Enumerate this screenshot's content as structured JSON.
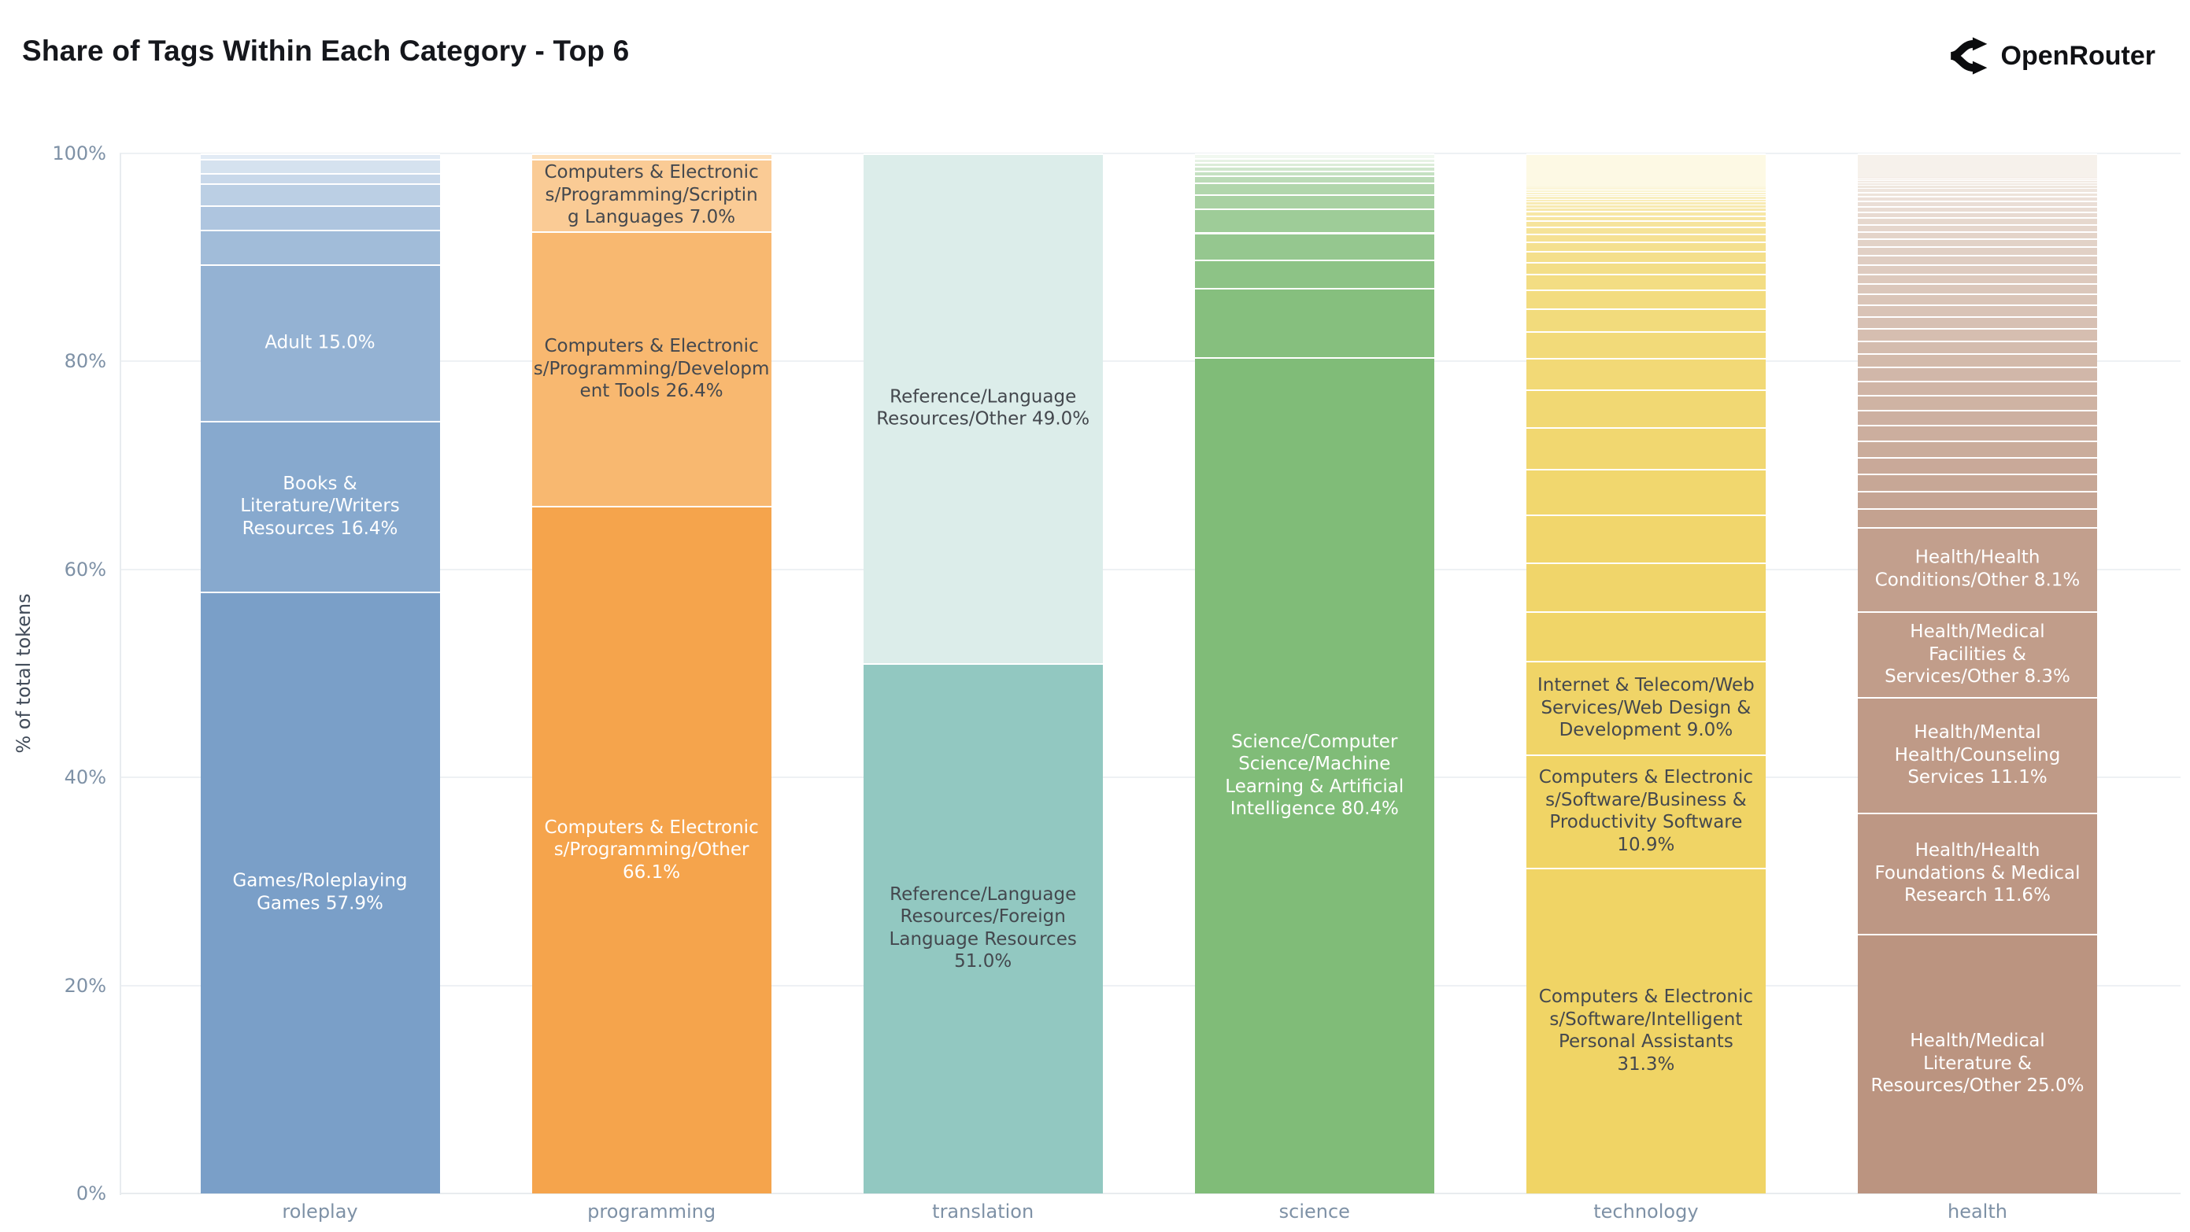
{
  "title": "Share of Tags Within Each Category - Top 6",
  "brand": {
    "name": "OpenRouter"
  },
  "y_axis": {
    "title": "% of total tokens",
    "ticks": [
      {
        "label": "0%",
        "value": 0
      },
      {
        "label": "20%",
        "value": 20
      },
      {
        "label": "40%",
        "value": 40
      },
      {
        "label": "60%",
        "value": 60
      },
      {
        "label": "80%",
        "value": 80
      },
      {
        "label": "100%",
        "value": 100
      }
    ]
  },
  "x_axis": {
    "categories": [
      "roleplay",
      "programming",
      "translation",
      "science",
      "technology",
      "health"
    ]
  },
  "colors": {
    "background": "#ffffff",
    "title_text": "#15171c",
    "tick_text": "#7e91a6",
    "axis_title_text": "#414b59",
    "grid": "#eef1f4",
    "axis_line": "#e8ecef",
    "segment_gap": "#ffffff",
    "label_light": "#ffffff",
    "label_dark": "#44484e",
    "logo_icon": "#0b0c0e"
  },
  "chart_data": {
    "type": "bar",
    "stacked": true,
    "normalized": "percent",
    "title": "Share of Tags Within Each Category - Top 6",
    "ylabel": "% of total tokens",
    "ylim": [
      0,
      100
    ],
    "grid": true,
    "legend": false,
    "categories": [
      "roleplay",
      "programming",
      "translation",
      "science",
      "technology",
      "health"
    ],
    "bars": [
      {
        "category": "roleplay",
        "color_base": "#7A9FC8",
        "color_light": "#E2EBF5",
        "color_curve": 1,
        "segments": [
          {
            "label": "Games/Roleplaying Games",
            "value": 57.9,
            "text": "light"
          },
          {
            "label": "Books & Literature/Writers Resources",
            "value": 16.4,
            "text": "light"
          },
          {
            "label": "Adult",
            "value": 15.0,
            "text": "light"
          },
          {
            "value": 3.4
          },
          {
            "value": 2.3
          },
          {
            "value": 2.1
          },
          {
            "value": 1.0
          },
          {
            "value": 1.4
          },
          {
            "value": 0.5
          }
        ]
      },
      {
        "category": "programming",
        "color_base": "#F5A44C",
        "color_light": "#FDDFB9",
        "color_curve": 1,
        "segments": [
          {
            "label": "Computers & Electronics/Programming/Other",
            "value": 66.1,
            "text": "light"
          },
          {
            "label": "Computers & Electronics/Programming/Development Tools",
            "value": 26.4,
            "text": "dark"
          },
          {
            "label": "Computers & Electronics/Programming/Scripting Languages",
            "value": 7.0,
            "text": "dark"
          },
          {
            "value": 0.5
          }
        ]
      },
      {
        "category": "translation",
        "color_base": "#92C8C1",
        "color_light": "#DCEDEA",
        "color_curve": 1,
        "segments": [
          {
            "label": "Reference/Language Resources/Foreign Language Resources",
            "value": 51.0,
            "text": "dark"
          },
          {
            "label": "Reference/Language Resources/Other",
            "value": 49.0,
            "text": "dark"
          }
        ]
      },
      {
        "category": "science",
        "color_base": "#80BC78",
        "color_light": "#F1F8F0",
        "color_curve": 1.2,
        "segments": [
          {
            "label": "Science/Computer Science/Machine Learning & Artificial Intelligence",
            "value": 80.4,
            "text": "light"
          },
          {
            "value": 6.7
          },
          {
            "value": 2.7
          },
          {
            "value": 2.6
          },
          {
            "value": 2.3
          },
          {
            "value": 1.4
          },
          {
            "value": 1.1
          },
          {
            "value": 0.7
          },
          {
            "value": 0.45
          },
          {
            "value": 0.45
          },
          {
            "value": 0.4
          },
          {
            "value": 0.38
          },
          {
            "value": 0.42
          }
        ]
      },
      {
        "category": "technology",
        "color_base": "#F0D465",
        "color_light": "#FDF9E4",
        "color_curve": 1.6,
        "segments": [
          {
            "label": "Computers & Electronics/Software/Intelligent Personal Assistants",
            "value": 31.3,
            "text": "dark"
          },
          {
            "label": "Computers & Electronics/Software/Business & Productivity Software",
            "value": 10.9,
            "text": "dark"
          },
          {
            "label": "Internet & Telecom/Web Services/Web Design & Development",
            "value": 9.0,
            "text": "dark"
          },
          {
            "value": 4.8
          },
          {
            "value": 4.7
          },
          {
            "value": 4.6
          },
          {
            "value": 4.4
          },
          {
            "value": 4.0
          },
          {
            "value": 3.6
          },
          {
            "value": 3.0
          },
          {
            "value": 2.6
          },
          {
            "value": 2.2
          },
          {
            "value": 1.8
          },
          {
            "value": 1.5
          },
          {
            "value": 1.2
          },
          {
            "value": 1.0
          },
          {
            "value": 0.9
          },
          {
            "value": 0.8
          },
          {
            "value": 0.7
          },
          {
            "value": 0.6
          },
          {
            "value": 0.45
          },
          {
            "value": 0.4
          },
          {
            "value": 0.35
          },
          {
            "value": 0.3
          },
          {
            "value": 0.3
          },
          {
            "value": 0.25
          },
          {
            "value": 0.25
          },
          {
            "value": 0.2
          },
          {
            "value": 0.2
          },
          {
            "value": 0.2
          },
          {
            "value": 0.15
          },
          {
            "value": 0.15
          },
          {
            "value": 3.2
          }
        ]
      },
      {
        "category": "health",
        "color_base": "#BB9480",
        "color_light": "#F6F1EB",
        "color_curve": 0.9,
        "segments": [
          {
            "label": "Health/Medical Literature & Resources/Other",
            "value": 25.0,
            "text": "light"
          },
          {
            "label": "Health/Health Foundations & Medical Research",
            "value": 11.6,
            "text": "light"
          },
          {
            "label": "Health/Mental Health/Counseling Services",
            "value": 11.1,
            "text": "light"
          },
          {
            "label": "Health/Medical Facilities & Services/Other",
            "value": 8.3,
            "text": "light"
          },
          {
            "label": "Health/Health Conditions/Other",
            "value": 8.1,
            "text": "light"
          },
          {
            "value": 1.75
          },
          {
            "value": 1.7
          },
          {
            "value": 1.66
          },
          {
            "value": 1.61
          },
          {
            "value": 1.56
          },
          {
            "value": 1.52
          },
          {
            "value": 1.47
          },
          {
            "value": 1.42
          },
          {
            "value": 1.38
          },
          {
            "value": 1.33
          },
          {
            "value": 1.28
          },
          {
            "value": 1.24
          },
          {
            "value": 1.19
          },
          {
            "value": 1.14
          },
          {
            "value": 1.1
          },
          {
            "value": 1.05
          },
          {
            "value": 1.0
          },
          {
            "value": 0.96
          },
          {
            "value": 0.91
          },
          {
            "value": 0.86
          },
          {
            "value": 0.82
          },
          {
            "value": 0.77
          },
          {
            "value": 0.72
          },
          {
            "value": 0.68
          },
          {
            "value": 0.63
          },
          {
            "value": 0.58
          },
          {
            "value": 0.54
          },
          {
            "value": 0.49
          },
          {
            "value": 0.44
          },
          {
            "value": 0.4
          },
          {
            "value": 0.35
          },
          {
            "value": 0.3
          },
          {
            "value": 0.26
          },
          {
            "value": 0.21
          },
          {
            "value": 0.16
          },
          {
            "value": 0.12
          },
          {
            "value": 2.3
          }
        ]
      }
    ]
  }
}
